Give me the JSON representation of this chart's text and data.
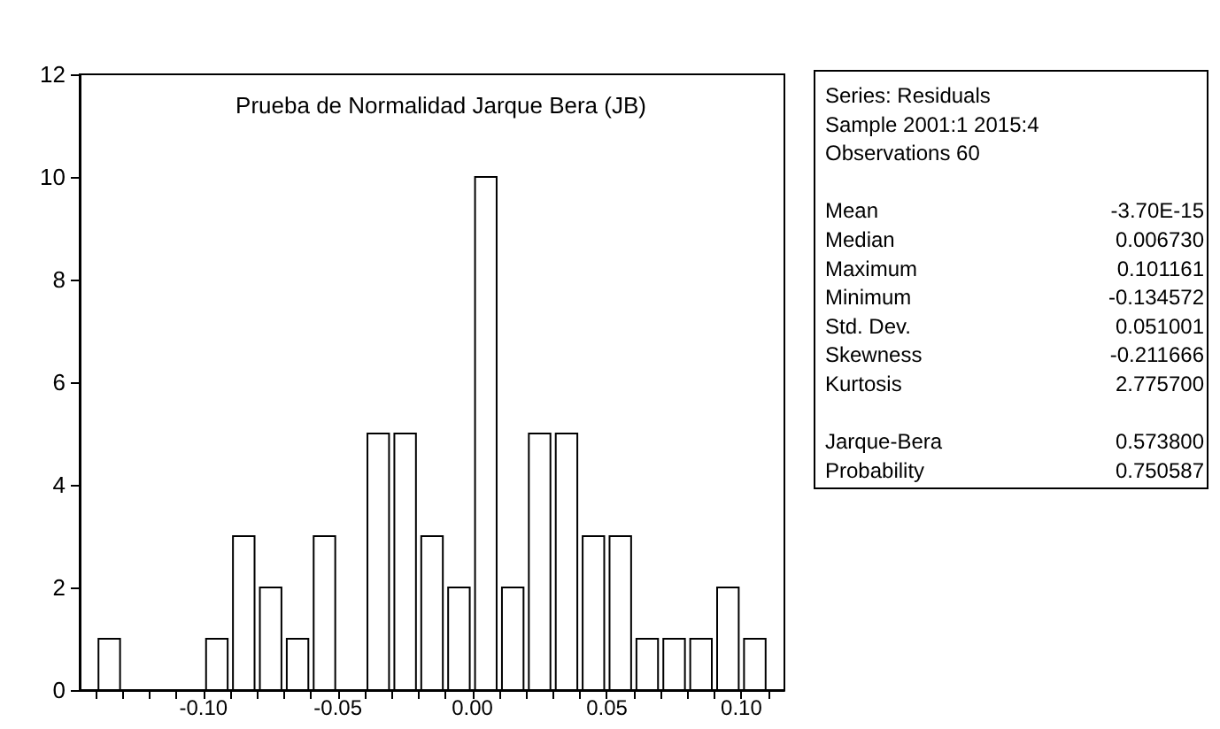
{
  "chart_data": {
    "type": "histogram",
    "title": "Prueba de Normalidad Jarque Bera (JB)",
    "bins": [
      -0.14,
      -0.13,
      -0.12,
      -0.11,
      -0.1,
      -0.09,
      -0.08,
      -0.07,
      -0.06,
      -0.05,
      -0.04,
      -0.03,
      -0.02,
      -0.01,
      0.0,
      0.01,
      0.02,
      0.03,
      0.04,
      0.05,
      0.06,
      0.07,
      0.08,
      0.09,
      0.1,
      0.11
    ],
    "values": [
      1,
      0,
      0,
      0,
      1,
      3,
      2,
      1,
      3,
      0,
      5,
      5,
      3,
      2,
      10,
      2,
      5,
      5,
      3,
      3,
      1,
      1,
      1,
      2,
      1
    ],
    "color": "#ffffff",
    "xlim": [
      -0.146,
      0.116
    ],
    "xticks": [
      {
        "value": -0.14,
        "label": null
      },
      {
        "value": -0.13,
        "label": null
      },
      {
        "value": -0.12,
        "label": null
      },
      {
        "value": -0.11,
        "label": null
      },
      {
        "value": -0.1,
        "label": "-0.10"
      },
      {
        "value": -0.09,
        "label": null
      },
      {
        "value": -0.08,
        "label": null
      },
      {
        "value": -0.07,
        "label": null
      },
      {
        "value": -0.06,
        "label": null
      },
      {
        "value": -0.05,
        "label": "-0.05"
      },
      {
        "value": -0.04,
        "label": null
      },
      {
        "value": -0.03,
        "label": null
      },
      {
        "value": -0.02,
        "label": null
      },
      {
        "value": -0.01,
        "label": null
      },
      {
        "value": 0,
        "label": "0.00"
      },
      {
        "value": 0.01,
        "label": null
      },
      {
        "value": 0.02,
        "label": null
      },
      {
        "value": 0.03,
        "label": null
      },
      {
        "value": 0.04,
        "label": null
      },
      {
        "value": 0.05,
        "label": "0.05"
      },
      {
        "value": 0.06,
        "label": null
      },
      {
        "value": 0.07,
        "label": null
      },
      {
        "value": 0.08,
        "label": null
      },
      {
        "value": 0.09,
        "label": null
      },
      {
        "value": 0.1,
        "label": "0.10"
      },
      {
        "value": 0.11,
        "label": null
      }
    ],
    "ylim": [
      0,
      12
    ],
    "yticks": [
      0,
      2,
      4,
      6,
      8,
      10,
      12
    ],
    "grid": false,
    "annotations": [
      "Series: Residuals",
      "Sample 2001:1 2015:4",
      "Observations 60",
      "Mean",
      "-3.70E-15",
      "Median",
      "0.006730",
      "Maximum",
      "0.101161",
      "Minimum",
      "-0.134572",
      "Std. Dev.",
      "0.051001",
      "Skewness",
      "-0.211666",
      "Kurtosis",
      "2.775700",
      "Jarque-Bera",
      "0.573800",
      "Probability",
      "0.750587"
    ]
  }
}
